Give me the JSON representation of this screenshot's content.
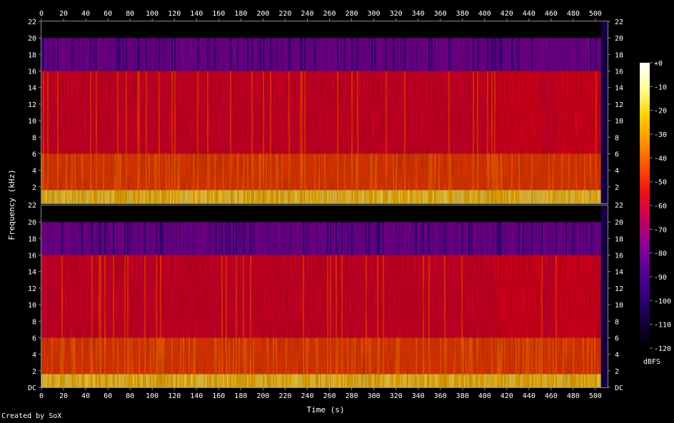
{
  "chart_data": {
    "type": "heatmap",
    "title": "",
    "xlabel": "Time (s)",
    "ylabel": "Frequency (kHz)",
    "x_ticks": [
      0,
      20,
      40,
      60,
      80,
      100,
      120,
      140,
      160,
      180,
      200,
      220,
      240,
      260,
      280,
      300,
      320,
      340,
      360,
      380,
      400,
      420,
      440,
      460,
      480,
      500
    ],
    "xlim": [
      0,
      511
    ],
    "y_tick_labels": [
      "DC",
      "2",
      "4",
      "6",
      "8",
      "10",
      "12",
      "14",
      "16",
      "18",
      "20",
      "22"
    ],
    "ylim_khz": [
      0,
      22
    ],
    "channels": 2,
    "colorbar": {
      "label": "dBFS",
      "tick_labels": [
        "+0",
        "-10",
        "-20",
        "-30",
        "-40",
        "-50",
        "-60",
        "-70",
        "-80",
        "-90",
        "-100",
        "-110",
        "-120"
      ],
      "range": [
        -120,
        0
      ],
      "colors": [
        "#000000",
        "#14003c",
        "#32007a",
        "#5a0096",
        "#8c0096",
        "#c8005a",
        "#ee0f14",
        "#ff5000",
        "#ff9600",
        "#ffd200",
        "#ffff96",
        "#ffffff"
      ]
    },
    "legend": "right"
  },
  "footer": {
    "credit": "Created by SoX"
  }
}
